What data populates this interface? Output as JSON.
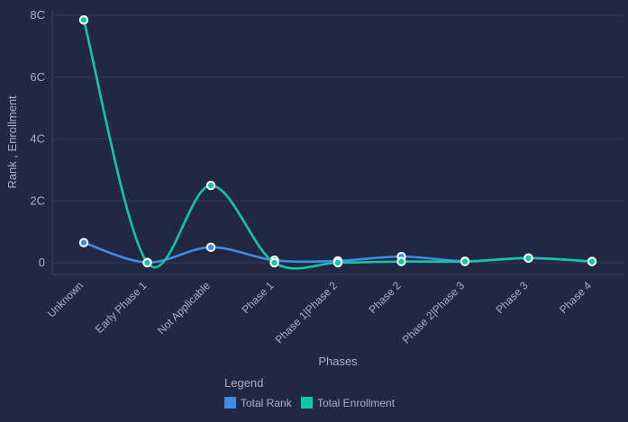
{
  "chart_data": {
    "type": "line",
    "xlabel": "Phases",
    "ylabel": "Rank , Enrollment",
    "categories": [
      "Unknown",
      "Early Phase 1",
      "Not Applicable",
      "Phase 1",
      "Phase 1|Phase 2",
      "Phase 2",
      "Phase 2|Phase 3",
      "Phase 3",
      "Phase 4"
    ],
    "y_ticks": [
      "0",
      "2C",
      "4C",
      "6C",
      "8C"
    ],
    "ylim": [
      0,
      8
    ],
    "grid": true,
    "legend": {
      "title": "Legend",
      "position": "bottom"
    },
    "series": [
      {
        "name": "Total Rank",
        "color": "#3a8ee6",
        "values": [
          0.65,
          0.01,
          0.5,
          0.08,
          0.06,
          0.2,
          0.05,
          0.15,
          0.04
        ]
      },
      {
        "name": "Total Enrollment",
        "color": "#12c6a7",
        "values": [
          7.85,
          0.0,
          2.5,
          0.0,
          0.0,
          0.04,
          0.04,
          0.15,
          0.04
        ]
      }
    ]
  }
}
